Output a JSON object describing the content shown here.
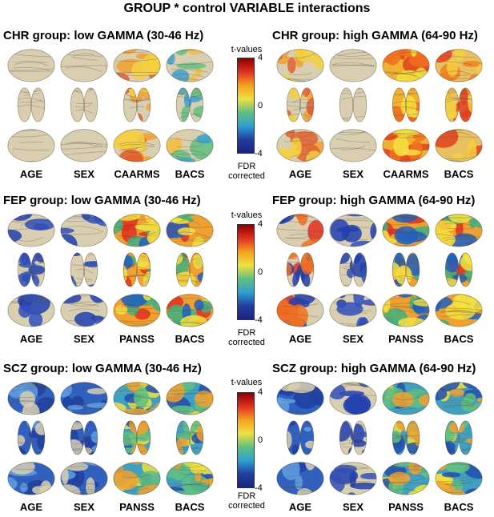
{
  "figure_title": "GROUP * control VARIABLE interactions",
  "colorbar": {
    "caption": "t-values",
    "ticks": [
      "4",
      "0",
      "-4"
    ],
    "note_line1": "FDR",
    "note_line2": "corrected",
    "colors": [
      "#8b0000",
      "#e03020",
      "#f5a020",
      "#f0e040",
      "#60c080",
      "#30a0d0",
      "#2040a0",
      "#1a237e"
    ]
  },
  "rows": [
    {
      "group": "CHR",
      "panels": [
        {
          "title": "CHR group: low GAMMA (30-46 Hz)",
          "variables": [
            "AGE",
            "SEX",
            "CAARMS",
            "BACS"
          ],
          "activation": [
            "none",
            "none",
            "sparse-warm",
            "sparse-mixed"
          ]
        },
        {
          "title": "CHR group: high GAMMA (64-90 Hz)",
          "variables": [
            "AGE",
            "SEX",
            "CAARMS",
            "BACS"
          ],
          "activation": [
            "sparse-warm",
            "none",
            "strong-warm",
            "warm"
          ]
        }
      ]
    },
    {
      "group": "FEP",
      "panels": [
        {
          "title": "FEP group: low GAMMA (30-46 Hz)",
          "variables": [
            "AGE",
            "SEX",
            "PANSS",
            "BACS"
          ],
          "activation": [
            "sparse-cool",
            "sparse-cool",
            "full-warm",
            "full-warm"
          ]
        },
        {
          "title": "FEP group: high GAMMA (64-90 Hz)",
          "variables": [
            "AGE",
            "SEX",
            "PANSS",
            "BACS"
          ],
          "activation": [
            "mixed",
            "sparse-cool",
            "full-warm",
            "full-warm"
          ]
        }
      ]
    },
    {
      "group": "SCZ",
      "panels": [
        {
          "title": "SCZ group: low GAMMA (30-46 Hz)",
          "variables": [
            "AGE",
            "SEX",
            "PANSS",
            "BACS"
          ],
          "activation": [
            "cool",
            "cool",
            "full-mixed",
            "full-mixed"
          ]
        },
        {
          "title": "SCZ group: high GAMMA (64-90 Hz)",
          "variables": [
            "AGE",
            "SEX",
            "PANSS",
            "BACS"
          ],
          "activation": [
            "cool",
            "sparse-cool",
            "full-mixed",
            "full-mixed"
          ]
        }
      ]
    }
  ]
}
